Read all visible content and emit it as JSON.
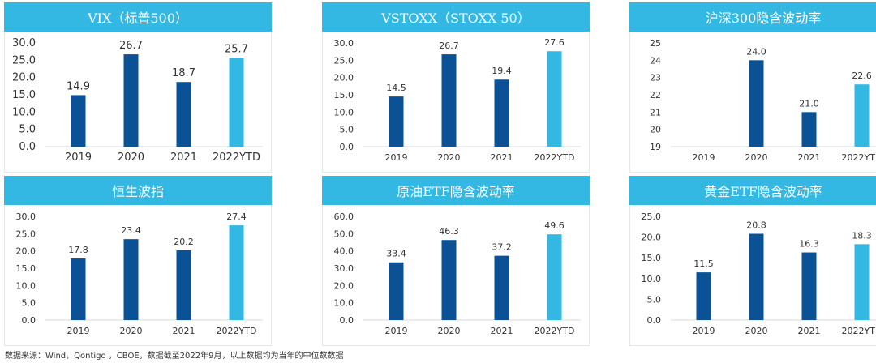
{
  "colors": {
    "header": "#33b8e3",
    "bar_dark": "#0a5196",
    "bar_light": "#33b8e3",
    "axis": "#d9d9d9"
  },
  "chart_data": [
    {
      "type": "bar",
      "title": "VIX（标普500）",
      "categories": [
        "2019",
        "2020",
        "2021",
        "2022YTD"
      ],
      "values": [
        14.9,
        26.7,
        18.7,
        25.7
      ],
      "value_labels": [
        "14.9",
        "26.7",
        "18.7",
        "25.7"
      ],
      "ylim": [
        0,
        30
      ],
      "yticks": [
        "0.0",
        "5.0",
        "10.0",
        "15.0",
        "20.0",
        "25.0",
        "30.0"
      ]
    },
    {
      "type": "bar",
      "title": "VSTOXX（STOXX 50）",
      "categories": [
        "2019",
        "2020",
        "2021",
        "2022YTD"
      ],
      "values": [
        14.5,
        26.7,
        19.4,
        27.6
      ],
      "value_labels": [
        "14.5",
        "26.7",
        "19.4",
        "27.6"
      ],
      "ylim": [
        0,
        30
      ],
      "yticks": [
        "0.0",
        "5.0",
        "10.0",
        "15.0",
        "20.0",
        "25.0",
        "30.0"
      ]
    },
    {
      "type": "bar",
      "title": "沪深300隐含波动率",
      "categories": [
        "2019",
        "2020",
        "2021",
        "2022YTD"
      ],
      "values": [
        null,
        24.0,
        21.0,
        22.6
      ],
      "value_labels": [
        "",
        "24.0",
        "21.0",
        "22.6"
      ],
      "ylim": [
        19,
        25
      ],
      "yticks": [
        "19",
        "20",
        "21",
        "22",
        "23",
        "24",
        "25"
      ]
    },
    {
      "type": "bar",
      "title": "恒生波指",
      "categories": [
        "2019",
        "2020",
        "2021",
        "2022YTD"
      ],
      "values": [
        17.8,
        23.4,
        20.2,
        27.4
      ],
      "value_labels": [
        "17.8",
        "23.4",
        "20.2",
        "27.4"
      ],
      "ylim": [
        0,
        30
      ],
      "yticks": [
        "0.0",
        "5.0",
        "10.0",
        "15.0",
        "20.0",
        "25.0",
        "30.0"
      ]
    },
    {
      "type": "bar",
      "title": "原油ETF隐含波动率",
      "categories": [
        "2019",
        "2020",
        "2021",
        "2022YTD"
      ],
      "values": [
        33.4,
        46.3,
        37.2,
        49.6
      ],
      "value_labels": [
        "33.4",
        "46.3",
        "37.2",
        "49.6"
      ],
      "ylim": [
        0,
        60
      ],
      "yticks": [
        "0.0",
        "10.0",
        "20.0",
        "30.0",
        "40.0",
        "50.0",
        "60.0"
      ]
    },
    {
      "type": "bar",
      "title": "黄金ETF隐含波动率",
      "categories": [
        "2019",
        "2020",
        "2021",
        "2022YTD"
      ],
      "values": [
        11.5,
        20.8,
        16.3,
        18.3
      ],
      "value_labels": [
        "11.5",
        "20.8",
        "16.3",
        "18.3"
      ],
      "ylim": [
        0,
        25
      ],
      "yticks": [
        "0.0",
        "5.0",
        "10.0",
        "15.0",
        "20.0",
        "25.0"
      ]
    }
  ],
  "footnote": "数据来源：Wind，Qontigo ，CBOE，数据截至2022年9月，以上数据均为当年的中位数数据"
}
